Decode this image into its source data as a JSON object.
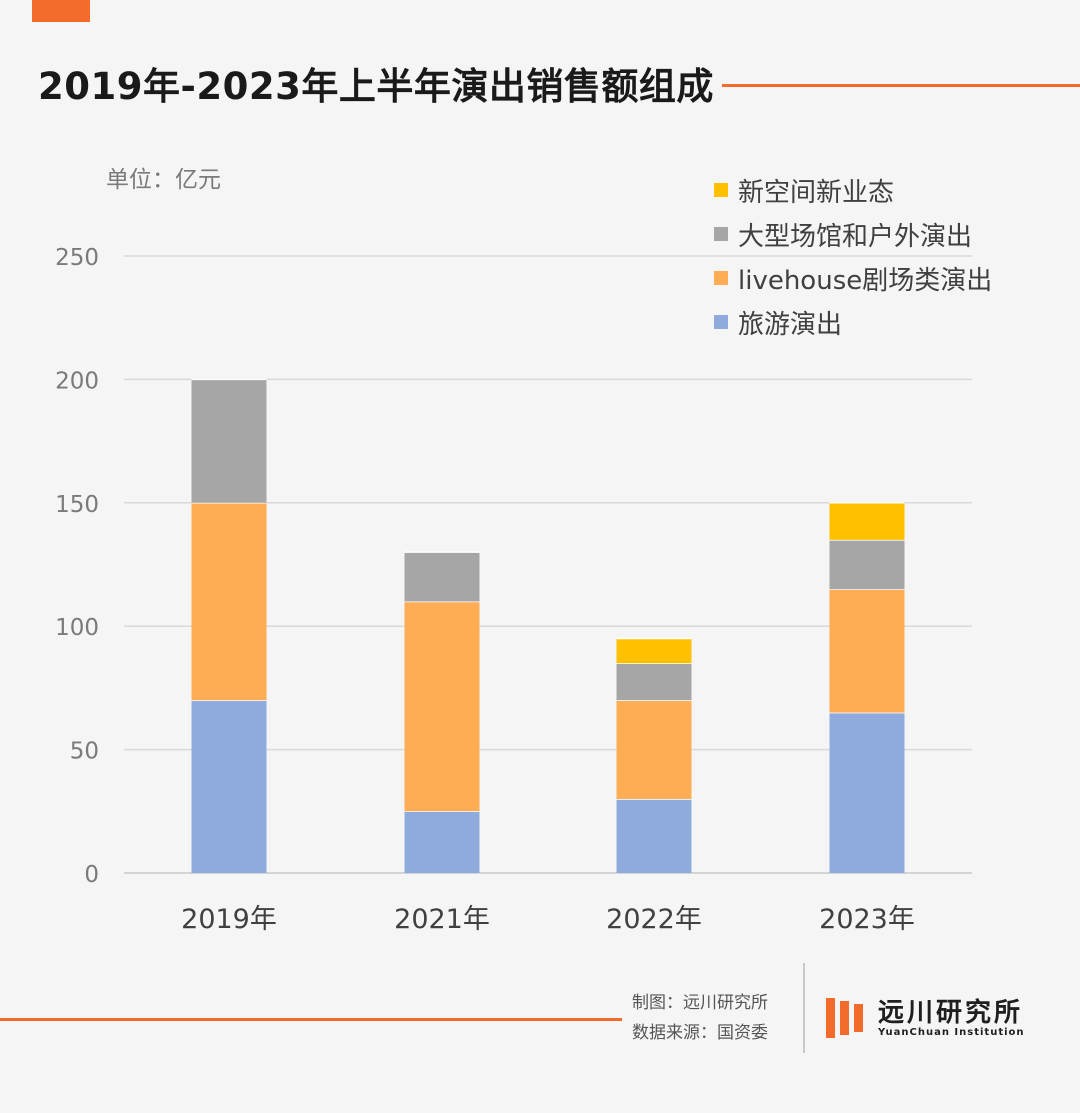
{
  "header": {
    "title": "2019年-2023年上半年演出销售额组成",
    "unit": "单位：亿元"
  },
  "colors": {
    "accent": "#f26b2a",
    "tourism": "#8faadc",
    "livehouse": "#ffad55",
    "venue": "#a6a6a6",
    "newspace": "#ffc000",
    "grid": "#d9d9d9"
  },
  "legend": [
    {
      "label": "新空间新业态",
      "color": "#ffc000"
    },
    {
      "label": "大型场馆和户外演出",
      "color": "#a6a6a6"
    },
    {
      "label": "livehouse剧场类演出",
      "color": "#ffad55"
    },
    {
      "label": "旅游演出",
      "color": "#8faadc"
    }
  ],
  "chart_data": {
    "type": "bar",
    "stacked": true,
    "title": "2019年-2023年上半年演出销售额组成",
    "ylabel": "单位：亿元",
    "categories": [
      "2019年",
      "2021年",
      "2022年",
      "2023年"
    ],
    "ylim": [
      0,
      250
    ],
    "yticks": [
      0,
      50,
      100,
      150,
      200,
      250
    ],
    "grid": true,
    "legend_position": "top-right",
    "series": [
      {
        "name": "旅游演出",
        "color": "#8faadc",
        "values": [
          70,
          25,
          30,
          65
        ]
      },
      {
        "name": "livehouse剧场类演出",
        "color": "#ffad55",
        "values": [
          80,
          85,
          40,
          50
        ]
      },
      {
        "name": "大型场馆和户外演出",
        "color": "#a6a6a6",
        "values": [
          50,
          20,
          15,
          20
        ]
      },
      {
        "name": "新空间新业态",
        "color": "#ffc000",
        "values": [
          0,
          0,
          10,
          15
        ]
      }
    ]
  },
  "footer": {
    "credit_maker": "制图：远川研究所",
    "credit_source": "数据来源：国资委",
    "brand_cn": "远川研究所",
    "brand_en": "YuanChuan Institution"
  }
}
